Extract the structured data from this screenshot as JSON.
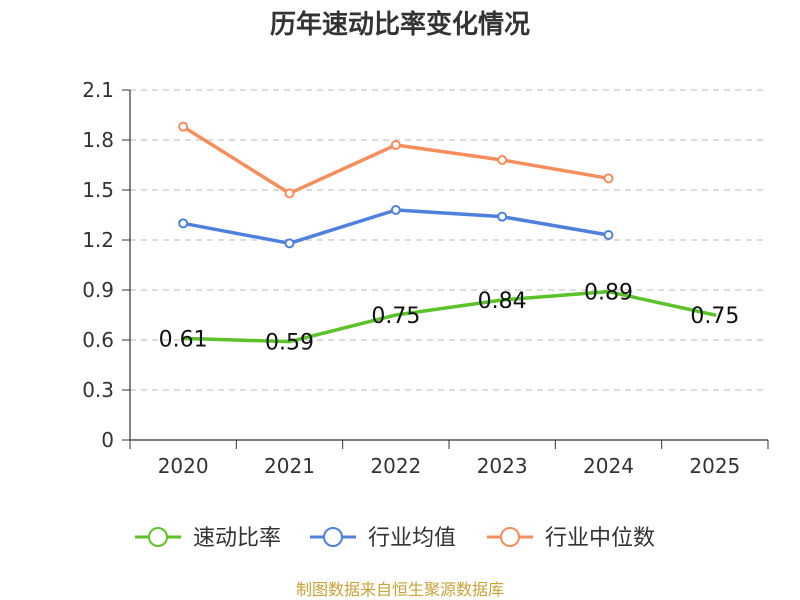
{
  "chart_data": {
    "type": "line",
    "title": "历年速动比率变化情况",
    "categories": [
      "2020",
      "2021",
      "2022",
      "2023",
      "2024",
      "2025"
    ],
    "yticks": [
      "0",
      "0.3",
      "0.6",
      "0.9",
      "1.2",
      "1.5",
      "1.8",
      "2.1"
    ],
    "ylim": [
      0,
      2.1
    ],
    "grid": true,
    "legend_position": "bottom",
    "series": [
      {
        "name": "速动比率",
        "color": "#5cc22a",
        "values": [
          0.61,
          0.59,
          0.75,
          0.84,
          0.89,
          0.75
        ],
        "labels": [
          "0.61",
          "0.59",
          "0.75",
          "0.84",
          "0.89",
          "0.75"
        ],
        "show_labels": true
      },
      {
        "name": "行业均值",
        "color": "#4f80dc",
        "values": [
          1.3,
          1.18,
          1.38,
          1.34,
          1.23,
          null
        ],
        "show_labels": false
      },
      {
        "name": "行业中位数",
        "color": "#f58d5c",
        "values": [
          1.88,
          1.48,
          1.77,
          1.68,
          1.57,
          null
        ],
        "show_labels": false
      }
    ],
    "source": "制图数据来自恒生聚源数据库"
  }
}
